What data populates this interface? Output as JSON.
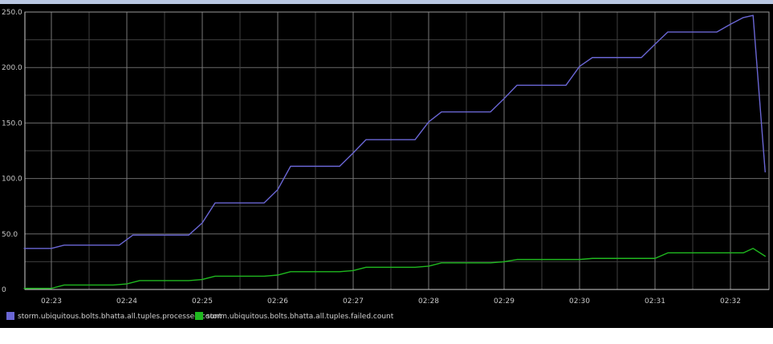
{
  "chart_data": {
    "type": "line",
    "title": "",
    "xlabel": "",
    "ylabel": "",
    "x_ticks": [
      "02:23",
      "02:24",
      "02:25",
      "02:26",
      "02:27",
      "02:28",
      "02:29",
      "02:30",
      "02:31",
      "02:32"
    ],
    "y_ticks": [
      "250.0",
      "200.0",
      "150.0",
      "100.0",
      "50.0",
      "0"
    ],
    "y_tick_values": [
      250,
      200,
      150,
      100,
      50,
      0
    ],
    "ylim": [
      0,
      250
    ],
    "xlim_minutes": [
      -0.36,
      9.46
    ],
    "x_unit": "minutes after 02:23",
    "grid": true,
    "legend_position": "bottom-left",
    "series": [
      {
        "name": "storm.ubiquitous.bolts.bhatta.all.tuples.processed.count",
        "color": "#6a66d4",
        "points": [
          [
            -0.36,
            37
          ],
          [
            0.0,
            37
          ],
          [
            0.17,
            40
          ],
          [
            0.9,
            40
          ],
          [
            1.08,
            49
          ],
          [
            1.82,
            49
          ],
          [
            2.0,
            60
          ],
          [
            2.17,
            78
          ],
          [
            2.82,
            78
          ],
          [
            3.0,
            90
          ],
          [
            3.17,
            111
          ],
          [
            3.82,
            111
          ],
          [
            4.0,
            123
          ],
          [
            4.17,
            135
          ],
          [
            4.82,
            135
          ],
          [
            5.0,
            151
          ],
          [
            5.17,
            160
          ],
          [
            5.82,
            160
          ],
          [
            6.0,
            172
          ],
          [
            6.17,
            184
          ],
          [
            6.82,
            184
          ],
          [
            7.0,
            201
          ],
          [
            7.17,
            209
          ],
          [
            7.82,
            209
          ],
          [
            8.0,
            221
          ],
          [
            8.17,
            232
          ],
          [
            8.82,
            232
          ],
          [
            9.0,
            239
          ],
          [
            9.17,
            245
          ],
          [
            9.3,
            247
          ],
          [
            9.46,
            106
          ]
        ]
      },
      {
        "name": "storm.ubiquitous.bolts.bhatta.all.tuples.failed.count",
        "color": "#1fb81f",
        "points": [
          [
            -0.36,
            1
          ],
          [
            0.0,
            1
          ],
          [
            0.17,
            4
          ],
          [
            0.82,
            4
          ],
          [
            1.0,
            5
          ],
          [
            1.17,
            8
          ],
          [
            1.82,
            8
          ],
          [
            2.0,
            9
          ],
          [
            2.17,
            12
          ],
          [
            2.82,
            12
          ],
          [
            3.0,
            13
          ],
          [
            3.17,
            16
          ],
          [
            3.82,
            16
          ],
          [
            4.0,
            17
          ],
          [
            4.17,
            20
          ],
          [
            4.82,
            20
          ],
          [
            5.0,
            21
          ],
          [
            5.17,
            24
          ],
          [
            5.82,
            24
          ],
          [
            6.0,
            25
          ],
          [
            6.17,
            27
          ],
          [
            6.82,
            27
          ],
          [
            7.0,
            27
          ],
          [
            7.17,
            28
          ],
          [
            7.82,
            28
          ],
          [
            8.0,
            28
          ],
          [
            8.17,
            33
          ],
          [
            8.82,
            33
          ],
          [
            9.0,
            33
          ],
          [
            9.17,
            33
          ],
          [
            9.3,
            37
          ],
          [
            9.46,
            30
          ]
        ]
      }
    ]
  },
  "legend": [
    {
      "label": "storm.ubiquitous.bolts.bhatta.all.tuples.processed.count",
      "color": "#6a66d4"
    },
    {
      "label": "storm.ubiquitous.bolts.bhatta.all.tuples.failed.count",
      "color": "#1fb81f"
    }
  ]
}
